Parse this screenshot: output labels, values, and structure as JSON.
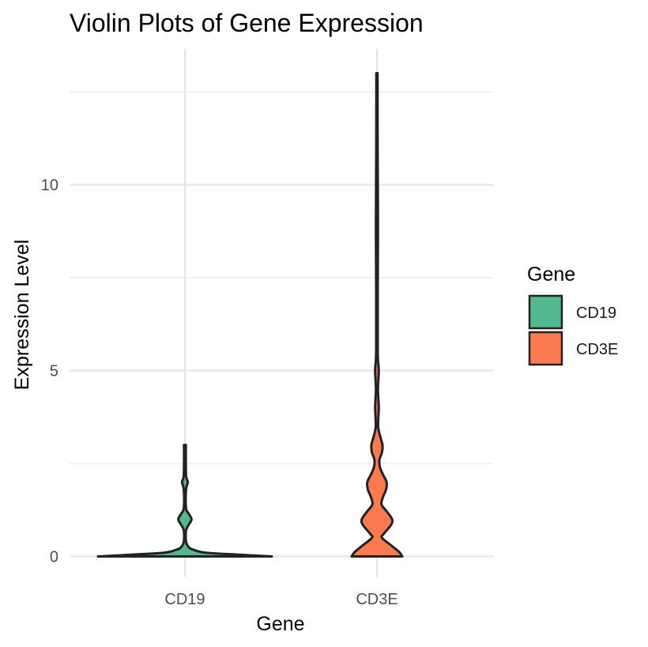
{
  "chart_data": {
    "type": "violin",
    "title": "Violin Plots of Gene Expression",
    "xlabel": "Gene",
    "ylabel": "Expression Level",
    "categories": [
      "CD19",
      "CD3E"
    ],
    "ylim": [
      -0.6,
      13.5
    ],
    "y_ticks": [
      0,
      5,
      10
    ],
    "y_minor_ticks": [
      2.5,
      7.5,
      12.5
    ],
    "grid": true,
    "legend": {
      "title": "Gene",
      "position": "right",
      "entries": [
        {
          "label": "CD19",
          "color": "#52B98F"
        },
        {
          "label": "CD3E",
          "color": "#FC7A50"
        }
      ]
    },
    "series": [
      {
        "name": "CD19",
        "color": "#52B98F",
        "density": [
          [
            0.0,
            0.92
          ],
          [
            0.05,
            0.55
          ],
          [
            0.1,
            0.22
          ],
          [
            0.18,
            0.09
          ],
          [
            0.25,
            0.04
          ],
          [
            0.4,
            0.012
          ],
          [
            0.7,
            0.012
          ],
          [
            0.85,
            0.04
          ],
          [
            1.0,
            0.07
          ],
          [
            1.15,
            0.04
          ],
          [
            1.3,
            0.012
          ],
          [
            1.8,
            0.012
          ],
          [
            2.0,
            0.03
          ],
          [
            2.2,
            0.012
          ],
          [
            3.0,
            0.01
          ]
        ]
      },
      {
        "name": "CD3E",
        "color": "#FC7A50",
        "density": [
          [
            0.0,
            0.25
          ],
          [
            0.12,
            0.22
          ],
          [
            0.3,
            0.14
          ],
          [
            0.5,
            0.05
          ],
          [
            0.6,
            0.065
          ],
          [
            0.85,
            0.14
          ],
          [
            1.0,
            0.15
          ],
          [
            1.2,
            0.1
          ],
          [
            1.4,
            0.045
          ],
          [
            1.6,
            0.06
          ],
          [
            1.8,
            0.09
          ],
          [
            2.0,
            0.095
          ],
          [
            2.2,
            0.06
          ],
          [
            2.4,
            0.03
          ],
          [
            2.6,
            0.025
          ],
          [
            2.8,
            0.05
          ],
          [
            3.0,
            0.055
          ],
          [
            3.2,
            0.035
          ],
          [
            3.5,
            0.012
          ],
          [
            4.0,
            0.018
          ],
          [
            4.5,
            0.01
          ],
          [
            5.0,
            0.018
          ],
          [
            5.5,
            0.008
          ],
          [
            7.0,
            0.008
          ],
          [
            9.0,
            0.01
          ],
          [
            11.0,
            0.007
          ],
          [
            13.0,
            0.006
          ]
        ]
      }
    ]
  }
}
